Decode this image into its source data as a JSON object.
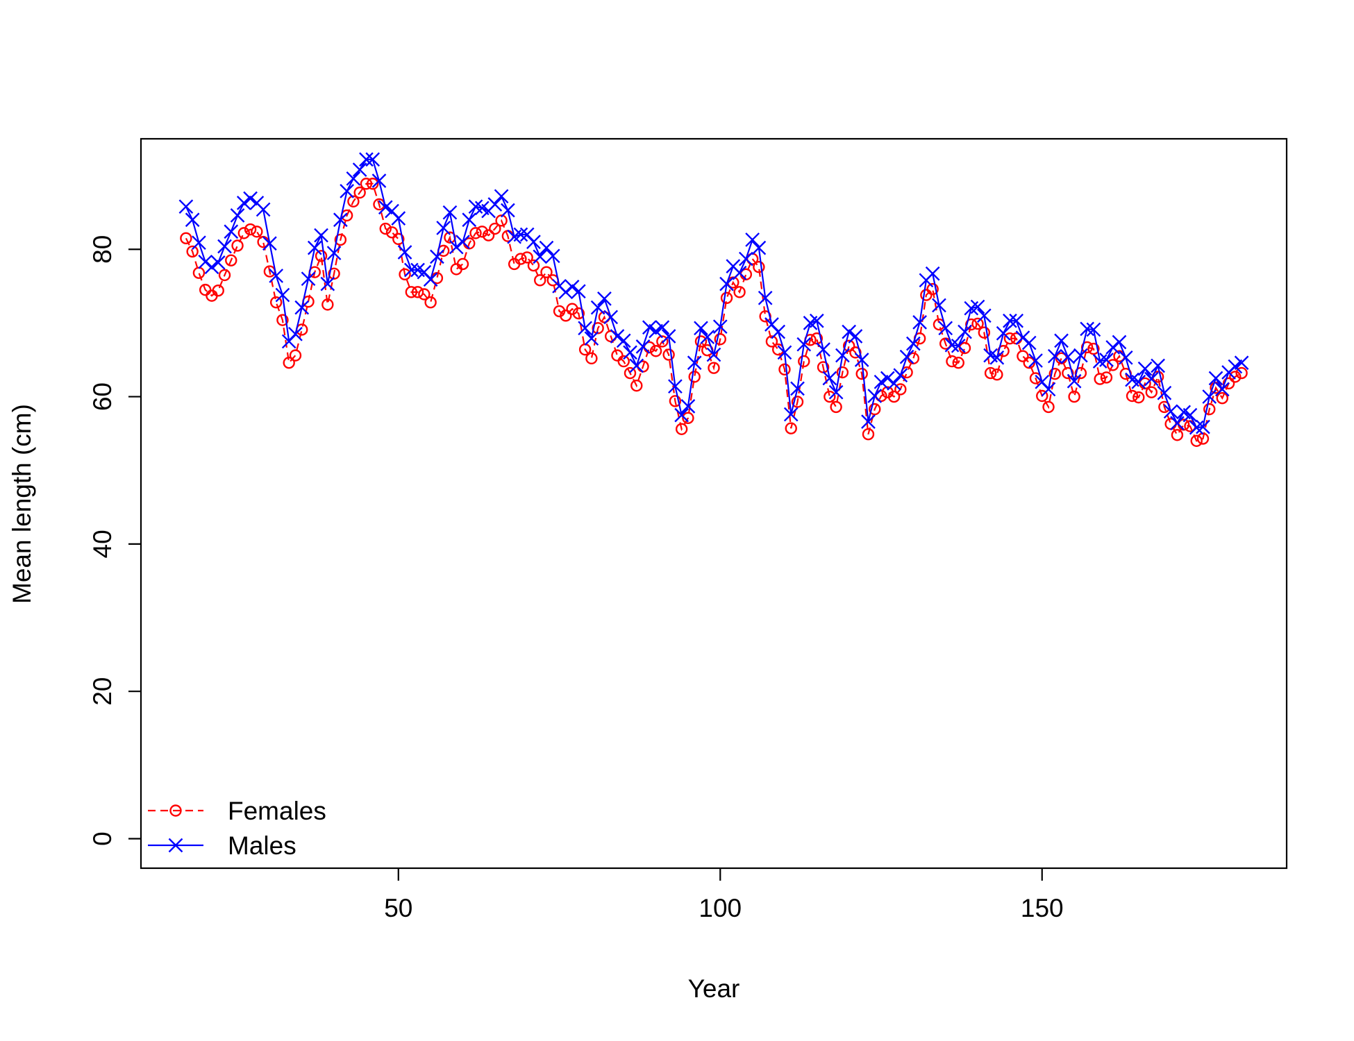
{
  "chart_data": {
    "type": "line",
    "title": "",
    "xlabel": "Year",
    "ylabel": "Mean length (cm)",
    "xlim": [
      10,
      188
    ],
    "ylim": [
      -4,
      95
    ],
    "x_ticks": [
      50,
      100,
      150
    ],
    "y_ticks": [
      0,
      20,
      40,
      60,
      80
    ],
    "grid": false,
    "legend": {
      "position": "bottom-left"
    },
    "x_start": 17,
    "x_end": 181,
    "series": [
      {
        "name": "Females",
        "color": "#ff0000",
        "line_style": "dashed",
        "marker": "open-circle",
        "values": [
          81.5,
          79.7,
          76.8,
          74.5,
          73.7,
          74.4,
          76.5,
          78.5,
          80.5,
          82.2,
          82.7,
          82.4,
          81.0,
          77.0,
          72.8,
          70.4,
          64.6,
          65.6,
          69.1,
          72.9,
          76.9,
          79.1,
          72.5,
          76.7,
          81.3,
          84.6,
          86.5,
          87.7,
          88.9,
          88.9,
          86.1,
          82.8,
          82.3,
          81.4,
          76.6,
          74.2,
          74.2,
          73.9,
          72.8,
          76.1,
          79.8,
          81.6,
          77.3,
          78.0,
          80.8,
          82.2,
          82.4,
          81.9,
          82.8,
          83.9,
          81.8,
          78.0,
          78.7,
          78.9,
          77.8,
          75.8,
          76.9,
          75.8,
          71.6,
          71.0,
          71.9,
          71.3,
          66.4,
          65.2,
          69.3,
          70.8,
          68.2,
          65.6,
          64.8,
          63.2,
          61.5,
          64.1,
          66.7,
          66.2,
          67.5,
          65.7,
          59.4,
          55.6,
          57.1,
          62.7,
          67.5,
          66.3,
          63.9,
          67.8,
          73.4,
          75.5,
          74.2,
          76.6,
          78.7,
          77.6,
          70.9,
          67.5,
          66.4,
          63.7,
          55.7,
          59.3,
          64.8,
          67.7,
          67.9,
          64.0,
          60.0,
          58.6,
          63.3,
          66.9,
          66.0,
          63.1,
          54.9,
          58.3,
          60.1,
          60.6,
          60.0,
          61.0,
          63.3,
          65.2,
          67.9,
          73.8,
          74.6,
          69.8,
          67.2,
          64.8,
          64.6,
          66.6,
          69.8,
          69.9,
          68.7,
          63.2,
          63.0,
          66.2,
          67.9,
          67.9,
          65.5,
          64.6,
          62.5,
          60.1,
          58.6,
          63.1,
          65.2,
          63.2,
          60.0,
          63.2,
          66.7,
          66.5,
          62.4,
          62.6,
          64.3,
          65.5,
          63.1,
          60.1,
          59.9,
          61.8,
          60.6,
          62.7,
          58.6,
          56.3,
          54.8,
          56.2,
          56.0,
          54.0,
          54.3,
          58.3,
          61.2,
          59.8,
          61.8,
          62.7,
          63.2
        ]
      },
      {
        "name": "Males",
        "color": "#0000ff",
        "line_style": "solid",
        "marker": "x",
        "values": [
          85.8,
          84.0,
          80.9,
          78.3,
          77.6,
          78.2,
          80.4,
          82.4,
          84.6,
          86.3,
          86.9,
          86.3,
          85.4,
          80.8,
          76.4,
          73.8,
          67.5,
          68.5,
          72.1,
          76.0,
          80.2,
          81.9,
          75.3,
          79.5,
          84.0,
          87.9,
          89.6,
          90.8,
          92.2,
          92.2,
          89.3,
          85.7,
          85.2,
          84.2,
          79.6,
          77.2,
          77.2,
          76.9,
          75.9,
          79.0,
          82.9,
          85.0,
          80.3,
          81.0,
          84.0,
          85.8,
          85.6,
          85.2,
          86.1,
          87.2,
          85.3,
          81.7,
          82.0,
          82.0,
          81.0,
          79.0,
          80.2,
          79.1,
          75.0,
          74.2,
          74.9,
          74.3,
          69.3,
          67.9,
          72.1,
          73.3,
          70.8,
          68.2,
          67.6,
          66.0,
          64.2,
          66.8,
          69.4,
          68.9,
          69.4,
          68.2,
          61.4,
          57.5,
          58.7,
          64.6,
          69.3,
          68.1,
          65.7,
          69.5,
          75.3,
          77.7,
          76.8,
          78.7,
          81.3,
          80.2,
          73.4,
          69.8,
          68.8,
          66.0,
          57.6,
          61.1,
          67.1,
          70.0,
          70.3,
          66.4,
          62.5,
          60.6,
          65.6,
          68.8,
          68.2,
          65.0,
          56.6,
          60.1,
          62.0,
          62.5,
          61.8,
          62.9,
          65.4,
          67.2,
          70.1,
          75.8,
          76.7,
          72.4,
          69.3,
          67.0,
          66.9,
          68.8,
          72.0,
          72.2,
          71.0,
          65.6,
          65.3,
          68.6,
          70.3,
          70.3,
          68.0,
          67.3,
          64.9,
          62.0,
          61.0,
          65.5,
          67.6,
          65.4,
          62.1,
          65.6,
          69.2,
          69.1,
          64.8,
          65.0,
          66.7,
          67.4,
          65.3,
          62.3,
          62.0,
          63.8,
          62.4,
          64.2,
          60.5,
          58.0,
          56.4,
          57.9,
          57.5,
          55.8,
          55.9,
          60.0,
          62.5,
          61.0,
          63.3,
          64.1,
          64.6
        ]
      }
    ]
  }
}
